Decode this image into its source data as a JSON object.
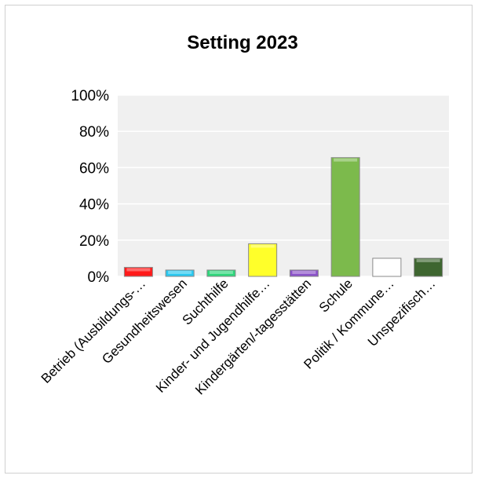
{
  "chart_data": {
    "type": "bar",
    "title": "Setting 2023",
    "xlabel": "",
    "ylabel": "",
    "ylim": [
      0,
      1
    ],
    "yticks": [
      "0%",
      "20%",
      "40%",
      "60%",
      "80%",
      "100%"
    ],
    "categories": [
      "Betrieb (Ausbildungs-…",
      "Gesundheitswesen",
      "Suchthilfe",
      "Kinder- und Jugendhilfe…",
      "Kindergärten/-tagesstätten",
      "Schule",
      "Politik / Kommune…",
      "Unspezifisch…"
    ],
    "values": [
      0.05,
      0.035,
      0.035,
      0.18,
      0.035,
      0.655,
      0.1,
      0.1
    ],
    "colors": [
      "#ff1a1a",
      "#29c8f0",
      "#2dd67a",
      "#ffff2a",
      "#8a52c8",
      "#7cba4c",
      "#ffffff",
      "#3e6630"
    ],
    "grid": true,
    "legend": "none"
  }
}
